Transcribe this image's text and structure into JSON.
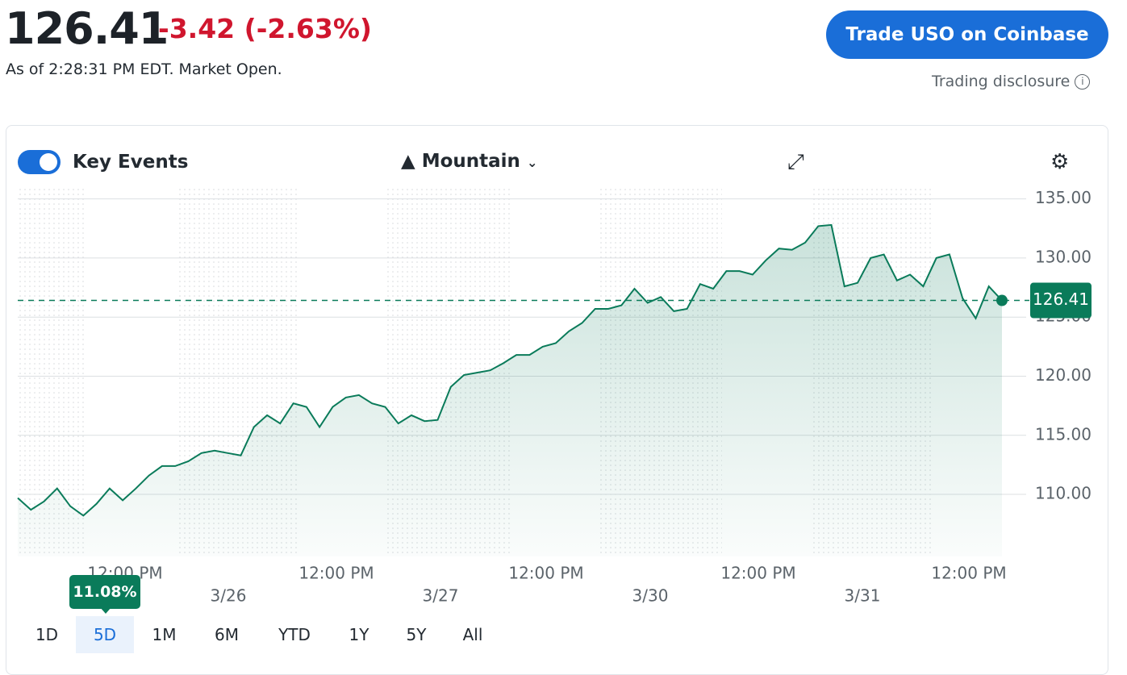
{
  "header": {
    "price": "126.41",
    "change": "-3.42",
    "change_pct": "(-2.63%)",
    "status": "As of 2:28:31 PM EDT. Market Open.",
    "button": "Trade USO on Coinbase",
    "disclosure": "Trading disclosure"
  },
  "toolbar": {
    "key_events": "Key Events",
    "chart_style": "Mountain"
  },
  "chart_data": {
    "type": "line",
    "color": "#0a7b5a",
    "values": [
      109.7,
      108.7,
      109.4,
      110.5,
      109,
      108.2,
      109.2,
      110.5,
      109.5,
      110.5,
      111.6,
      112.4,
      112.4,
      112.8,
      113.5,
      113.7,
      113.5,
      113.3,
      115.7,
      116.7,
      116,
      117.7,
      117.4,
      115.7,
      117.4,
      118.2,
      118.4,
      117.7,
      117.4,
      116,
      116.7,
      116.2,
      116.3,
      119.1,
      120.1,
      120.3,
      120.5,
      121.1,
      121.8,
      121.8,
      122.5,
      122.8,
      123.8,
      124.5,
      125.7,
      125.7,
      126,
      127.4,
      126.2,
      126.7,
      125.5,
      125.7,
      127.8,
      127.4,
      128.9,
      128.9,
      128.6,
      129.8,
      130.8,
      130.7,
      131.3,
      132.7,
      132.8,
      127.6,
      127.9,
      130,
      130.3,
      128.1,
      128.6,
      127.6,
      130,
      130.3,
      126.6,
      124.9,
      127.6,
      126.41
    ],
    "ylim": [
      104.75,
      136
    ],
    "yticks": [
      {
        "value": 110,
        "label": "110.00"
      },
      {
        "value": 115,
        "label": "115.00"
      },
      {
        "value": 120,
        "label": "120.00"
      },
      {
        "value": 125,
        "label": "125.00"
      },
      {
        "value": 130,
        "label": "130.00"
      },
      {
        "value": 135,
        "label": "135.00"
      }
    ],
    "grid": true,
    "x_time_labels": [
      "12:00 PM",
      "12:00 PM",
      "12:00 PM",
      "12:00 PM",
      "12:00 PM"
    ],
    "x_date_labels": [
      "3/26",
      "3/27",
      "3/30",
      "3/31"
    ],
    "reference": {
      "value": 126.41,
      "label": "126.41"
    }
  },
  "ranges": {
    "options": [
      "1D",
      "5D",
      "1M",
      "6M",
      "YTD",
      "1Y",
      "5Y",
      "All"
    ],
    "selected": 1,
    "change": "11.08%"
  }
}
